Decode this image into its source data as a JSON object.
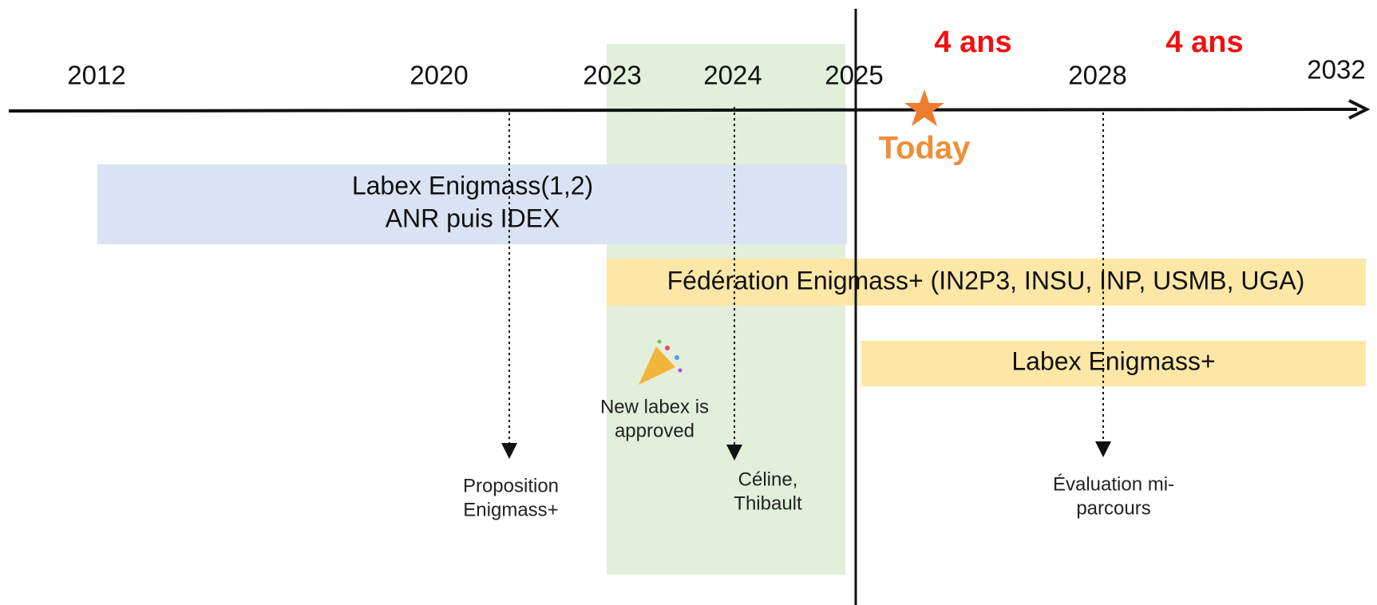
{
  "years": [
    "2012",
    "2020",
    "2023",
    "2024",
    "2025",
    "2028",
    "2032"
  ],
  "periods": [
    "4 ans",
    "4 ans"
  ],
  "today": "Today",
  "bands": [
    {
      "lines": [
        "Labex Enigmass(1,2)",
        "ANR puis IDEX"
      ]
    },
    {
      "lines": [
        "Fédération Enigmass+ (IN2P3, INSU, INP, USMB, UGA)"
      ]
    },
    {
      "lines": [
        "Labex Enigmass+"
      ]
    }
  ],
  "events": [
    {
      "lines": [
        "Proposition",
        "Enigmass+"
      ]
    },
    {
      "lines": [
        "Céline,",
        "Thibault"
      ]
    },
    {
      "lines": [
        "Évaluation mi-",
        "parcours"
      ]
    }
  ],
  "note": {
    "lines": [
      "New labex is",
      "approved"
    ]
  }
}
